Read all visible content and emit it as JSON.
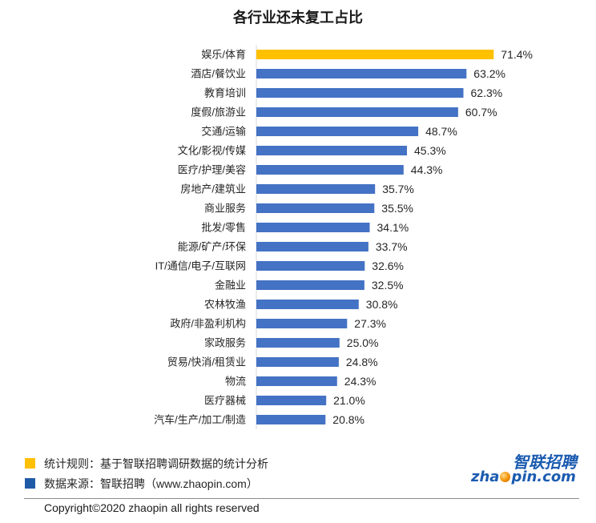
{
  "chart_data": {
    "type": "bar",
    "orientation": "horizontal",
    "title": "各行业还未复工占比",
    "categories": [
      "娱乐/体育",
      "酒店/餐饮业",
      "教育培训",
      "度假/旅游业",
      "交通/运输",
      "文化/影视/传媒",
      "医疗/护理/美容",
      "房地产/建筑业",
      "商业服务",
      "批发/零售",
      "能源/矿产/环保",
      "IT/通信/电子/互联网",
      "金融业",
      "农林牧渔",
      "政府/非盈利机构",
      "家政服务",
      "贸易/快消/租赁业",
      "物流",
      "医疗器械",
      "汽车/生产/加工/制造"
    ],
    "values": [
      71.4,
      63.2,
      62.3,
      60.7,
      48.7,
      45.3,
      44.3,
      35.7,
      35.5,
      34.1,
      33.7,
      32.6,
      32.5,
      30.8,
      27.3,
      25.0,
      24.8,
      24.3,
      21.0,
      20.8
    ],
    "data_labels": [
      "71.4%",
      "63.2%",
      "62.3%",
      "60.7%",
      "48.7%",
      "45.3%",
      "44.3%",
      "35.7%",
      "35.5%",
      "34.1%",
      "33.7%",
      "32.6%",
      "32.5%",
      "30.8%",
      "27.3%",
      "25.0%",
      "24.8%",
      "24.3%",
      "21.0%",
      "20.8%"
    ],
    "xlim": [
      0,
      80
    ],
    "grid": false,
    "highlight_index": 0,
    "colors": {
      "highlight": "#FFC000",
      "default": "#4472C4",
      "axis": "#D9D9D9"
    }
  },
  "legend": {
    "items": [
      {
        "color": "#FFC000",
        "text": "统计规则：基于智联招聘调研数据的统计分析"
      },
      {
        "color": "#1F5AA6",
        "text": "数据来源：智联招聘（www.zhaopin.com）"
      }
    ]
  },
  "logo": {
    "cn": "智联招聘",
    "en": "zhaopin.com",
    "colors": {
      "text": "#1B5BB0",
      "accent": "#F39200"
    }
  },
  "footer": {
    "copyright": "Copyright©2020 zhaopin all rights reserved"
  }
}
